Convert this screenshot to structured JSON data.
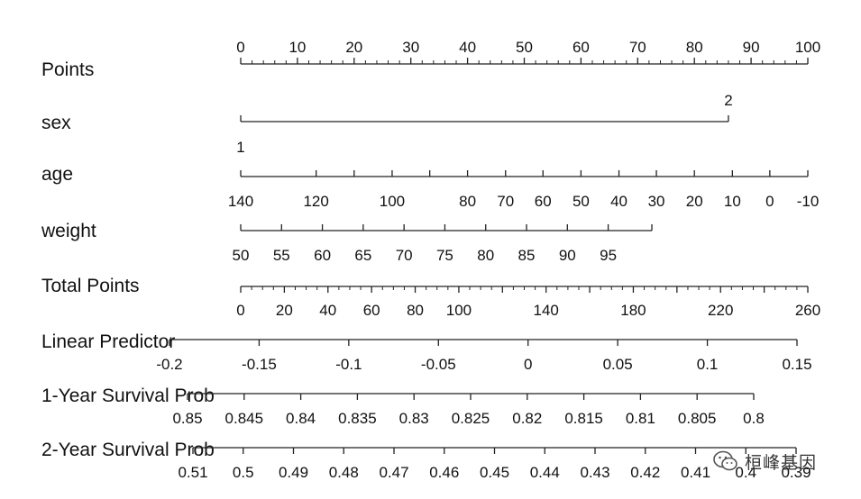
{
  "chart_data": {
    "type": "nomogram",
    "title": "",
    "rows": [
      {
        "name": "Points",
        "range": [
          0,
          100
        ],
        "major_ticks": [
          0,
          10,
          20,
          30,
          40,
          50,
          60,
          70,
          80,
          90,
          100
        ],
        "minor_step": 2,
        "labels": [
          "0",
          "10",
          "20",
          "30",
          "40",
          "50",
          "60",
          "70",
          "80",
          "90",
          "100"
        ],
        "label_side": "above"
      },
      {
        "name": "sex",
        "type": "categorical",
        "values": [
          {
            "label": "1",
            "points": 0,
            "label_side": "below"
          },
          {
            "label": "2",
            "points": 86,
            "label_side": "above"
          }
        ]
      },
      {
        "name": "age",
        "values": [
          140,
          120,
          100,
          80,
          70,
          60,
          50,
          40,
          30,
          20,
          10,
          0,
          -10
        ],
        "labels": [
          "140",
          "120",
          "100",
          "80",
          "70",
          "60",
          "50",
          "40",
          "30",
          "20",
          "10",
          "0",
          "-10"
        ],
        "points": [
          0,
          13.3,
          26.7,
          40,
          46.7,
          53.3,
          60,
          66.7,
          73.3,
          80,
          86.7,
          93.3,
          100
        ],
        "extra_ticks": [
          110,
          90
        ],
        "label_side": "below"
      },
      {
        "name": "weight",
        "values": [
          50,
          55,
          60,
          65,
          70,
          75,
          80,
          85,
          90,
          95,
          100
        ],
        "labels": [
          "50",
          "55",
          "60",
          "65",
          "70",
          "75",
          "80",
          "85",
          "90",
          "95",
          ""
        ],
        "points": [
          0,
          7.2,
          14.4,
          21.6,
          28.8,
          36,
          43.2,
          50.4,
          57.6,
          64.8,
          72.5
        ],
        "label_side": "below"
      },
      {
        "name": "Total Points",
        "range": [
          0,
          260
        ],
        "major_ticks": [
          0,
          20,
          40,
          60,
          80,
          100,
          120,
          140,
          160,
          180,
          200,
          220,
          240,
          260
        ],
        "labels": [
          "0",
          "20",
          "40",
          "60",
          "80",
          "100",
          "140",
          "180",
          "220",
          "260"
        ],
        "label_values": [
          0,
          20,
          40,
          60,
          80,
          100,
          140,
          180,
          220,
          260
        ],
        "minor_step": 5,
        "label_side": "below"
      },
      {
        "name": "Linear Predictor",
        "values": [
          -0.2,
          -0.15,
          -0.1,
          -0.05,
          0,
          0.05,
          0.1,
          0.15
        ],
        "labels": [
          "-0.2",
          "-0.15",
          "-0.1",
          "-0.05",
          "0",
          "0.05",
          "0.1",
          "0.15"
        ],
        "label_side": "below"
      },
      {
        "name": "1-Year Survival Prob",
        "values": [
          0.85,
          0.845,
          0.84,
          0.835,
          0.83,
          0.825,
          0.82,
          0.815,
          0.81,
          0.805,
          0.8
        ],
        "labels": [
          "0.85",
          "0.845",
          "0.84",
          "0.835",
          "0.83",
          "0.825",
          "0.82",
          "0.815",
          "0.81",
          "0.805",
          "0.8"
        ],
        "label_side": "below"
      },
      {
        "name": "2-Year Survival Prob",
        "values": [
          0.51,
          0.5,
          0.49,
          0.48,
          0.47,
          0.46,
          0.45,
          0.44,
          0.43,
          0.42,
          0.41,
          0.4,
          0.39
        ],
        "labels": [
          "0.51",
          "0.5",
          "0.49",
          "0.48",
          "0.47",
          "0.46",
          "0.45",
          "0.44",
          "0.43",
          "0.42",
          "0.41",
          "0.4",
          "0.39"
        ],
        "label_side": "below"
      }
    ]
  },
  "watermark": {
    "icon": "wechat-icon",
    "text": "桓峰基因",
    "color": "#333333"
  },
  "colors": {
    "line": "#222222",
    "text": "#111111",
    "background": "#ffffff"
  }
}
